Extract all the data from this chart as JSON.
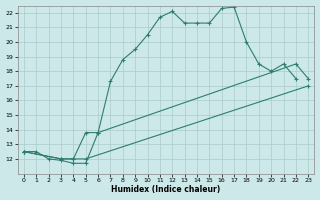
{
  "xlabel": "Humidex (Indice chaleur)",
  "bg_color": "#cce8e8",
  "grid_color": "#aacccc",
  "line_color": "#2e7d6e",
  "xlim": [
    -0.5,
    23.5
  ],
  "ylim": [
    11,
    22.5
  ],
  "yticks": [
    12,
    13,
    14,
    15,
    16,
    17,
    18,
    19,
    20,
    21,
    22
  ],
  "xticks": [
    0,
    1,
    2,
    3,
    4,
    5,
    6,
    7,
    8,
    9,
    10,
    11,
    12,
    13,
    14,
    15,
    16,
    17,
    18,
    19,
    20,
    21,
    22,
    23
  ],
  "line1_x": [
    0,
    1,
    2,
    3,
    4,
    5,
    6,
    7,
    8,
    9,
    10,
    11,
    12,
    13,
    14,
    15,
    16,
    17,
    18,
    19,
    20,
    21,
    22
  ],
  "line1_y": [
    12.5,
    12.5,
    12.0,
    11.9,
    11.7,
    11.7,
    13.8,
    17.3,
    18.8,
    19.5,
    20.5,
    21.7,
    22.1,
    21.3,
    21.3,
    21.3,
    22.3,
    22.4,
    20.0,
    18.5,
    18.0,
    18.5,
    17.5
  ],
  "line2_x": [
    0,
    3,
    4,
    5,
    6,
    22,
    23
  ],
  "line2_y": [
    12.5,
    12.0,
    12.0,
    13.8,
    13.8,
    18.5,
    17.5
  ],
  "line3_x": [
    0,
    3,
    4,
    5,
    23
  ],
  "line3_y": [
    12.5,
    12.0,
    12.0,
    12.0,
    17.0
  ]
}
